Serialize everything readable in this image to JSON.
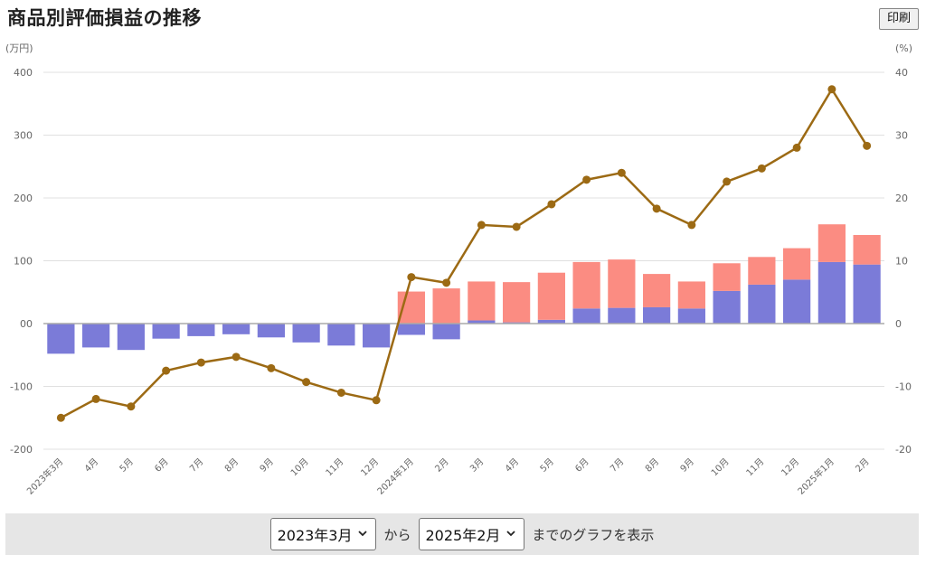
{
  "header": {
    "title": "商品別評価損益の推移",
    "print_label": "印刷"
  },
  "controls": {
    "from_value": "2023年3月",
    "from_text": "から",
    "to_value": "2025年2月",
    "suffix_text": "までのグラフを表示"
  },
  "colors": {
    "bar_base": "#7b7bd8",
    "bar_top": "#fb8c82",
    "line": "#9c6a14",
    "axis_text": "#666666",
    "grid": "#e0e0e0"
  },
  "chart_data": {
    "type": "bar",
    "ylabel": "(万円)",
    "y2label": "(%)",
    "ylim": [
      -200,
      400
    ],
    "y2lim": [
      -20,
      40
    ],
    "yticks": [
      "400",
      "300",
      "200",
      "100",
      "00",
      "-100",
      "-200"
    ],
    "y2ticks": [
      "40",
      "30",
      "20",
      "10",
      "0",
      "-10",
      "-20"
    ],
    "categories": [
      "2023年3月",
      "4月",
      "5月",
      "6月",
      "7月",
      "8月",
      "9月",
      "10月",
      "11月",
      "12月",
      "2024年1月",
      "2月",
      "3月",
      "4月",
      "5月",
      "6月",
      "7月",
      "8月",
      "9月",
      "10月",
      "11月",
      "12月",
      "2025年1月",
      "2月"
    ],
    "series": [
      {
        "kind": "bar",
        "values": [
          -48,
          -38,
          -42,
          -24,
          -20,
          -17,
          -22,
          -30,
          -35,
          -38,
          -18,
          -25,
          5,
          2,
          6,
          24,
          25,
          26,
          24,
          52,
          62,
          70,
          98,
          94
        ]
      },
      {
        "kind": "bar-stack",
        "values": [
          0,
          0,
          0,
          0,
          0,
          0,
          0,
          0,
          0,
          0,
          51,
          56,
          62,
          64,
          75,
          74,
          77,
          53,
          43,
          44,
          44,
          50,
          60,
          47
        ]
      },
      {
        "kind": "line",
        "axis": "right",
        "values": [
          -15,
          -12,
          -13.2,
          -7.5,
          -6.2,
          -5.3,
          -7.1,
          -9.3,
          -11,
          -12.2,
          7.4,
          6.5,
          15.7,
          15.4,
          19,
          22.9,
          24,
          18.3,
          15.7,
          22.6,
          24.7,
          28,
          37.3,
          28.3
        ]
      }
    ]
  }
}
